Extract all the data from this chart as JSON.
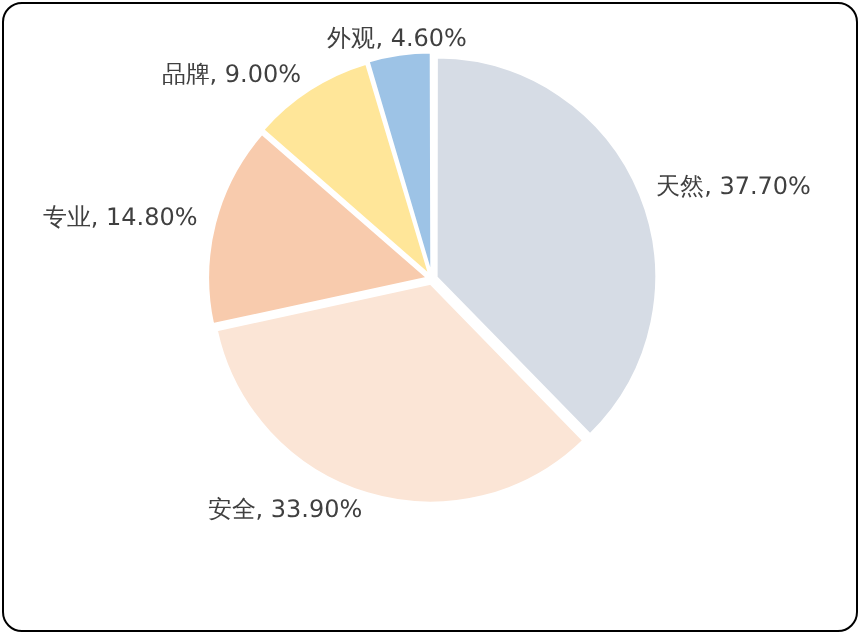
{
  "chart_data": {
    "type": "pie",
    "categories": [
      "天然",
      "安全",
      "专业",
      "品牌",
      "外观"
    ],
    "values": [
      37.7,
      33.9,
      14.8,
      9.0,
      4.6
    ],
    "colors": [
      "#d6dce5",
      "#fbe5d6",
      "#f8cbad",
      "#ffe699",
      "#9dc3e6"
    ],
    "value_labels": [
      "37.70%",
      "33.90%",
      "14.80%",
      "9.00%",
      "4.60%"
    ],
    "legend": false
  }
}
